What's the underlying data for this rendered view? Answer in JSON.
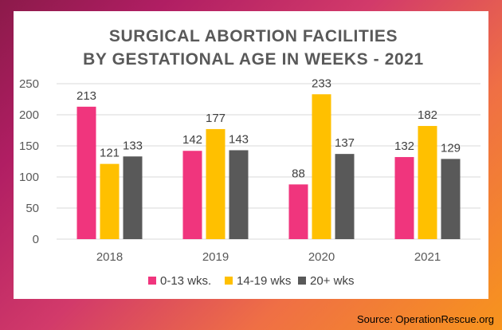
{
  "colors": {
    "series": [
      "#f0357d",
      "#ffc000",
      "#595959"
    ],
    "grid": "#d9d9d9",
    "text": "#595959"
  },
  "source": "Source: OperationRescue.org",
  "chart_data": {
    "type": "bar",
    "title_lines": [
      "SURGICAL ABORTION FACILITIES",
      "BY GESTATIONAL AGE IN WEEKS - 2021"
    ],
    "categories": [
      "2018",
      "2019",
      "2020",
      "2021"
    ],
    "series": [
      {
        "name": "0-13 wks.",
        "values": [
          213,
          142,
          88,
          132
        ]
      },
      {
        "name": "14-19 wks",
        "values": [
          121,
          177,
          233,
          182
        ]
      },
      {
        "name": "20+ wks",
        "values": [
          133,
          143,
          137,
          129
        ]
      }
    ],
    "ylim": [
      0,
      250
    ],
    "yticks": [
      "0",
      "50",
      "100",
      "150",
      "200",
      "250"
    ],
    "xlabel": "",
    "ylabel": "",
    "grid": true,
    "legend": "bottom",
    "data_labels": true
  }
}
